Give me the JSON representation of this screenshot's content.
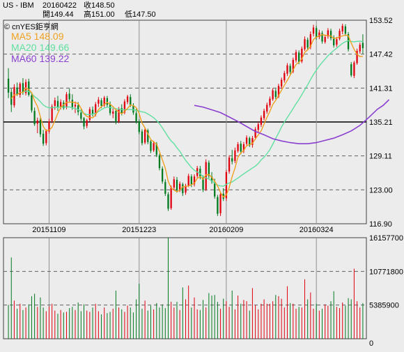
{
  "header": {
    "symbol": "US - IBM",
    "date": "20160422",
    "close": "收148.50",
    "open": "開149.44",
    "high": "高151.00",
    "low": "低147.50"
  },
  "legend": {
    "brand": "© cnYES鉅亨網",
    "ma5": "MA5 148.09",
    "ma20": "MA20 149.66",
    "ma60": "MA60 139.22"
  },
  "colors": {
    "up": "#e0000e",
    "down": "#007a1e",
    "ma5": "#f0a020",
    "ma20": "#5fe0a0",
    "ma60": "#8a3fd0",
    "grid": "#606060",
    "background": "#ececec"
  },
  "chart_data": [
    {
      "type": "candlestick",
      "y_ticks": [
        "153.52",
        "147.42",
        "141.31",
        "135.21",
        "129.11",
        "123.00",
        "116.90"
      ],
      "ylim": [
        116.9,
        153.52
      ],
      "x_ticks": [
        "20151109",
        "20151223",
        "20160209",
        "20160324"
      ],
      "x_tick_index": [
        14,
        45,
        75,
        106
      ],
      "ohlc": [
        [
          143.0,
          144.9,
          139.5,
          140.5
        ],
        [
          140.6,
          141.2,
          137.0,
          138.3
        ],
        [
          138.2,
          142.0,
          137.8,
          141.5
        ],
        [
          141.4,
          142.3,
          139.9,
          140.2
        ],
        [
          140.1,
          142.4,
          139.6,
          142.1
        ],
        [
          142.2,
          143.1,
          140.1,
          140.5
        ],
        [
          140.4,
          142.9,
          140.0,
          142.4
        ],
        [
          142.5,
          143.0,
          139.8,
          140.1
        ],
        [
          140.0,
          140.5,
          136.9,
          137.3
        ],
        [
          137.2,
          137.8,
          134.5,
          134.8
        ],
        [
          134.9,
          136.0,
          133.2,
          135.5
        ],
        [
          135.6,
          136.0,
          132.5,
          133.0
        ],
        [
          133.1,
          133.8,
          130.9,
          131.3
        ],
        [
          131.4,
          133.9,
          131.0,
          133.6
        ],
        [
          133.5,
          135.8,
          133.1,
          135.3
        ],
        [
          135.4,
          138.4,
          135.0,
          138.0
        ],
        [
          138.1,
          139.6,
          137.4,
          139.1
        ],
        [
          139.0,
          139.9,
          137.2,
          137.9
        ],
        [
          137.8,
          139.3,
          137.5,
          138.8
        ],
        [
          138.7,
          139.1,
          137.4,
          137.7
        ],
        [
          137.8,
          140.6,
          137.5,
          140.2
        ],
        [
          140.3,
          141.2,
          138.9,
          139.3
        ],
        [
          139.2,
          140.2,
          137.4,
          137.9
        ],
        [
          138.0,
          138.9,
          136.8,
          138.3
        ],
        [
          138.2,
          138.8,
          136.4,
          137.0
        ],
        [
          136.9,
          137.5,
          135.4,
          135.8
        ],
        [
          135.9,
          136.1,
          133.9,
          134.4
        ],
        [
          134.5,
          135.8,
          134.1,
          135.5
        ],
        [
          135.6,
          137.9,
          135.3,
          137.5
        ],
        [
          137.4,
          138.0,
          136.2,
          136.6
        ],
        [
          136.5,
          138.8,
          136.2,
          138.4
        ],
        [
          138.5,
          139.7,
          137.9,
          139.2
        ],
        [
          139.1,
          139.5,
          137.7,
          138.1
        ],
        [
          138.2,
          139.9,
          137.9,
          139.6
        ],
        [
          139.5,
          139.9,
          137.9,
          138.3
        ],
        [
          138.4,
          138.9,
          136.4,
          136.8
        ],
        [
          136.7,
          137.6,
          135.9,
          137.1
        ],
        [
          137.2,
          137.6,
          134.8,
          135.2
        ],
        [
          135.3,
          137.9,
          135.0,
          137.6
        ],
        [
          137.7,
          138.4,
          136.4,
          136.8
        ],
        [
          136.9,
          139.3,
          136.6,
          138.9
        ],
        [
          138.8,
          140.1,
          138.4,
          139.8
        ],
        [
          139.7,
          140.2,
          137.9,
          138.3
        ],
        [
          138.2,
          138.6,
          136.5,
          136.9
        ],
        [
          136.8,
          137.6,
          134.9,
          135.2
        ],
        [
          135.3,
          135.7,
          133.0,
          133.4
        ],
        [
          133.5,
          133.9,
          131.0,
          131.4
        ],
        [
          131.5,
          134.2,
          131.2,
          133.8
        ],
        [
          133.7,
          134.0,
          131.2,
          131.6
        ],
        [
          131.7,
          132.1,
          129.6,
          130.0
        ],
        [
          130.1,
          131.8,
          129.8,
          131.4
        ],
        [
          131.3,
          131.6,
          128.9,
          129.3
        ],
        [
          129.2,
          129.5,
          126.5,
          126.9
        ],
        [
          126.8,
          127.2,
          124.1,
          124.5
        ],
        [
          124.4,
          124.9,
          121.9,
          122.3
        ],
        [
          122.2,
          122.6,
          119.2,
          119.6
        ],
        [
          119.7,
          123.8,
          119.4,
          123.5
        ],
        [
          123.4,
          125.4,
          122.9,
          124.9
        ],
        [
          124.8,
          125.3,
          122.5,
          122.9
        ],
        [
          123.0,
          124.5,
          122.6,
          124.1
        ],
        [
          124.0,
          124.3,
          121.9,
          122.4
        ],
        [
          122.5,
          124.1,
          122.1,
          123.7
        ],
        [
          123.8,
          125.9,
          123.5,
          125.5
        ],
        [
          125.4,
          125.8,
          123.5,
          123.9
        ],
        [
          124.0,
          125.8,
          123.6,
          125.4
        ],
        [
          125.5,
          127.3,
          125.1,
          126.9
        ],
        [
          126.8,
          127.3,
          124.9,
          125.3
        ],
        [
          125.2,
          125.6,
          122.6,
          123.0
        ],
        [
          123.1,
          128.5,
          122.8,
          128.0
        ],
        [
          127.9,
          128.3,
          125.1,
          125.5
        ],
        [
          125.4,
          126.2,
          124.1,
          124.5
        ],
        [
          124.4,
          125.0,
          121.4,
          121.8
        ],
        [
          121.7,
          122.1,
          118.3,
          118.7
        ],
        [
          118.8,
          122.7,
          118.3,
          122.2
        ],
        [
          122.3,
          123.3,
          121.0,
          121.4
        ],
        [
          121.5,
          126.6,
          121.0,
          126.2
        ],
        [
          126.3,
          129.2,
          125.9,
          128.8
        ],
        [
          128.7,
          130.2,
          127.6,
          128.1
        ],
        [
          128.2,
          130.6,
          127.8,
          130.1
        ],
        [
          130.0,
          131.6,
          129.7,
          131.2
        ],
        [
          131.3,
          131.8,
          129.4,
          129.9
        ],
        [
          130.0,
          131.6,
          129.6,
          131.2
        ],
        [
          131.3,
          132.8,
          130.8,
          132.4
        ],
        [
          132.3,
          132.6,
          130.7,
          131.0
        ],
        [
          131.1,
          132.7,
          130.6,
          132.3
        ],
        [
          132.4,
          134.3,
          132.0,
          133.9
        ],
        [
          133.8,
          135.2,
          133.4,
          134.8
        ],
        [
          134.7,
          136.4,
          134.3,
          136.0
        ],
        [
          135.9,
          137.6,
          135.5,
          137.2
        ],
        [
          137.1,
          138.7,
          136.7,
          138.3
        ],
        [
          138.2,
          139.8,
          137.8,
          139.4
        ],
        [
          139.3,
          141.3,
          139.0,
          140.9
        ],
        [
          140.8,
          141.2,
          139.3,
          139.7
        ],
        [
          139.8,
          142.1,
          139.5,
          141.7
        ],
        [
          141.6,
          143.2,
          141.2,
          142.8
        ],
        [
          142.7,
          144.4,
          142.3,
          144.0
        ],
        [
          143.9,
          145.8,
          143.5,
          145.4
        ],
        [
          145.3,
          145.7,
          143.8,
          144.2
        ],
        [
          144.3,
          146.8,
          144.0,
          146.4
        ],
        [
          146.3,
          148.2,
          145.9,
          147.8
        ],
        [
          147.7,
          148.1,
          145.6,
          146.0
        ],
        [
          146.1,
          148.8,
          145.8,
          148.4
        ],
        [
          148.3,
          150.6,
          148.0,
          150.1
        ],
        [
          150.0,
          150.4,
          148.1,
          148.6
        ],
        [
          148.7,
          151.5,
          148.3,
          151.0
        ],
        [
          151.1,
          152.7,
          150.6,
          152.2
        ],
        [
          152.1,
          152.5,
          150.0,
          150.4
        ],
        [
          150.5,
          151.8,
          150.1,
          151.3
        ],
        [
          151.2,
          151.6,
          149.3,
          149.7
        ],
        [
          149.6,
          150.9,
          149.3,
          150.5
        ],
        [
          150.6,
          152.1,
          150.2,
          151.7
        ],
        [
          151.6,
          152.0,
          149.9,
          150.3
        ],
        [
          150.4,
          150.8,
          148.6,
          149.0
        ],
        [
          149.1,
          150.5,
          148.7,
          150.1
        ],
        [
          150.2,
          152.0,
          149.9,
          151.6
        ],
        [
          151.5,
          152.9,
          151.0,
          152.5
        ],
        [
          152.4,
          152.8,
          150.7,
          151.1
        ],
        [
          151.0,
          151.4,
          147.9,
          148.3
        ],
        [
          145.6,
          146.0,
          143.3,
          143.6
        ],
        [
          143.5,
          146.2,
          143.1,
          145.9
        ],
        [
          145.8,
          148.4,
          145.5,
          148.0
        ],
        [
          147.9,
          149.5,
          147.5,
          149.1
        ],
        [
          149.44,
          151.0,
          147.5,
          148.5
        ]
      ],
      "ma60": [
        [
          64,
          138.2
        ],
        [
          67,
          137.9
        ],
        [
          70,
          137.4
        ],
        [
          73,
          136.9
        ],
        [
          76,
          136.1
        ],
        [
          79,
          135.3
        ],
        [
          82,
          134.4
        ],
        [
          85,
          133.5
        ],
        [
          88,
          132.9
        ],
        [
          91,
          132.2
        ],
        [
          94,
          131.8
        ],
        [
          97,
          131.5
        ],
        [
          100,
          131.3
        ],
        [
          103,
          131.3
        ],
        [
          106,
          131.5
        ],
        [
          109,
          131.9
        ],
        [
          112,
          132.3
        ],
        [
          115,
          132.9
        ],
        [
          118,
          133.6
        ],
        [
          121,
          134.6
        ],
        [
          124,
          136.0
        ],
        [
          127,
          137.5
        ],
        [
          129,
          138.2
        ],
        [
          131,
          139.22
        ]
      ]
    },
    {
      "type": "bar",
      "y_ticks": [
        "16157700",
        "10771800",
        "5385900",
        "0"
      ],
      "ylim": [
        0,
        16157700
      ],
      "volume": [
        5.4,
        13.0,
        6.1,
        4.8,
        5.6,
        4.6,
        5.0,
        5.5,
        6.8,
        7.2,
        5.1,
        6.6,
        5.0,
        4.4,
        5.2,
        5.6,
        4.5,
        4.0,
        4.6,
        4.2,
        4.3,
        4.9,
        5.1,
        4.6,
        5.8,
        4.4,
        5.5,
        4.5,
        4.3,
        5.0,
        5.6,
        4.4,
        3.9,
        5.0,
        4.1,
        4.3,
        4.8,
        7.7,
        5.0,
        4.7,
        4.3,
        5.3,
        5.0,
        4.2,
        6.3,
        8.8,
        4.8,
        6.1,
        4.5,
        5.3,
        4.7,
        5.7,
        5.0,
        5.5,
        4.9,
        16.2,
        5.9,
        5.0,
        5.9,
        4.6,
        8.2,
        6.3,
        8.5,
        5.0,
        6.6,
        4.7,
        4.6,
        6.2,
        5.0,
        7.3,
        6.9,
        7.0,
        5.9,
        4.8,
        6.4,
        6.0,
        5.1,
        7.7,
        4.7,
        6.9,
        5.6,
        6.2,
        6.0,
        4.5,
        8.1,
        5.4,
        4.7,
        5.6,
        6.3,
        5.6,
        5.6,
        6.0,
        7.0,
        6.8,
        6.4,
        5.0,
        8.4,
        5.7,
        5.6,
        4.8,
        5.1,
        5.0,
        9.5,
        6.3,
        7.4,
        4.8,
        5.6,
        4.5,
        4.8,
        5.5,
        5.3,
        6.0,
        7.6,
        5.1,
        4.9,
        5.8,
        5.3,
        6.5,
        6.3,
        11.2,
        6.0,
        5.0,
        5.7
      ],
      "volume_unit": "millions"
    }
  ]
}
